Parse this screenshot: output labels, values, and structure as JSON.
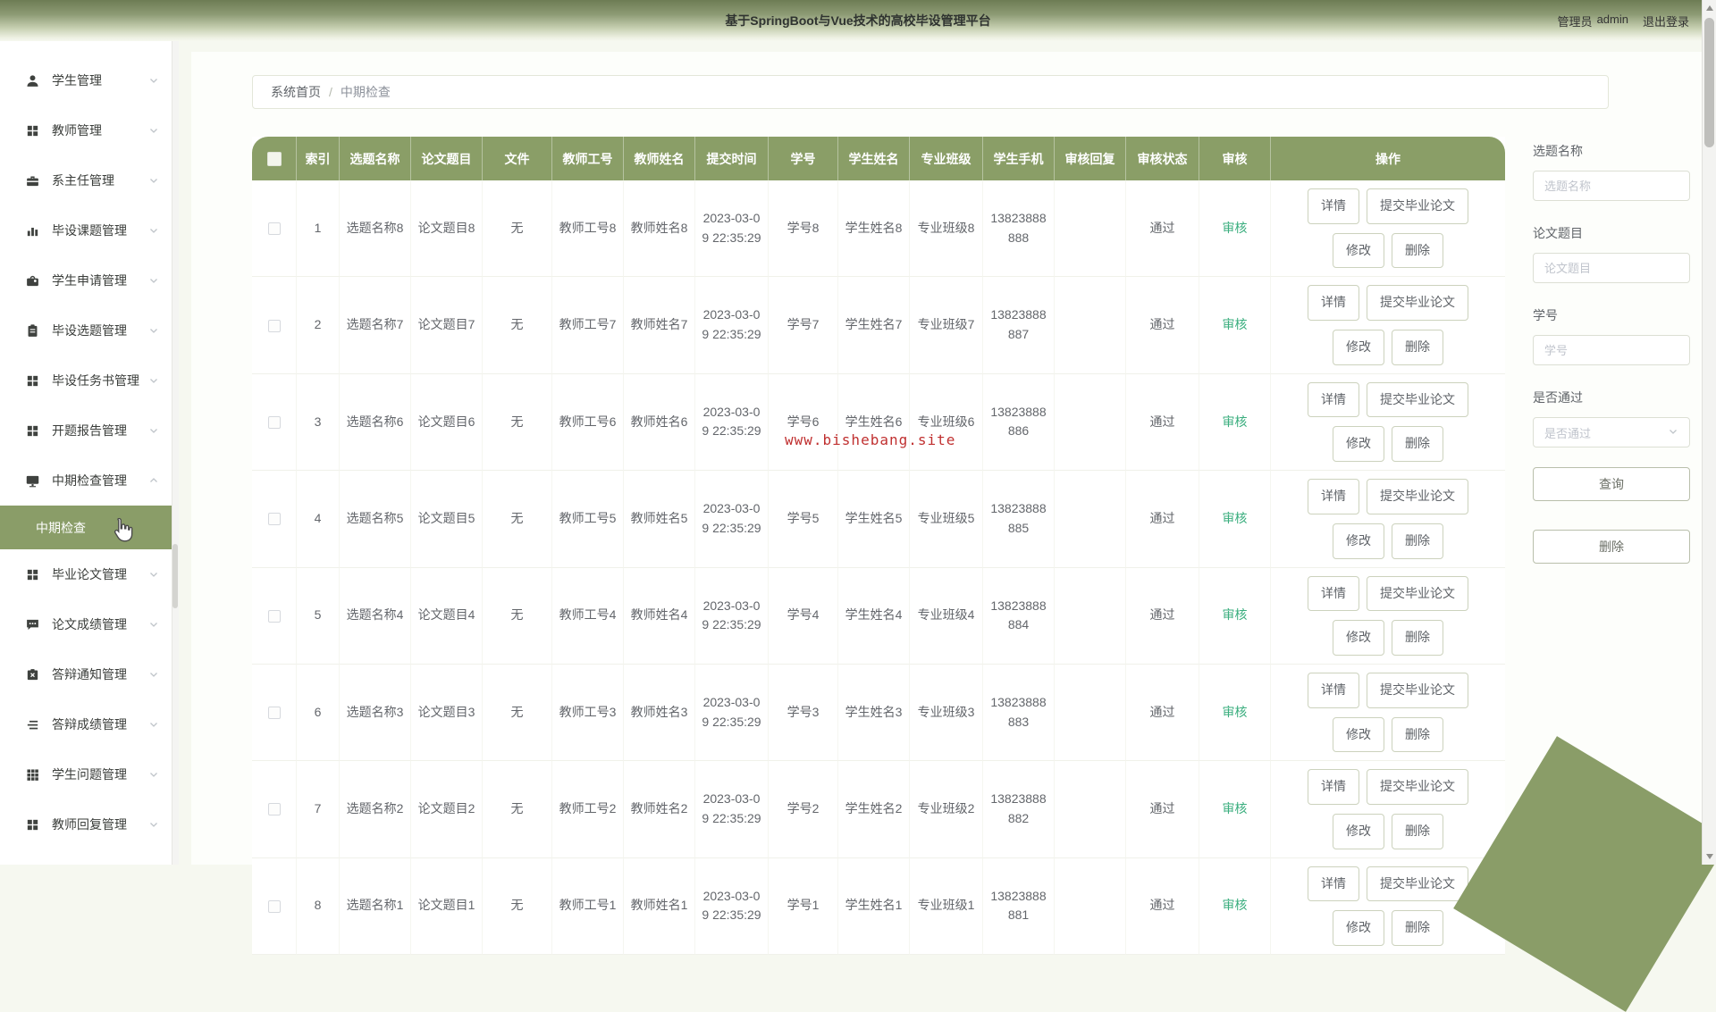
{
  "header": {
    "title": "基于SpringBoot与Vue技术的高校毕设管理平台",
    "user_role": "管理员",
    "username": "admin",
    "logout": "退出登录"
  },
  "breadcrumb": {
    "home": "系统首页",
    "separator": "/",
    "current": "中期检查"
  },
  "sidebar": {
    "items": [
      {
        "key": "students",
        "label": "学生管理",
        "icon": "user-icon"
      },
      {
        "key": "teachers",
        "label": "教师管理",
        "icon": "grid-icon"
      },
      {
        "key": "department-head",
        "label": "系主任管理",
        "icon": "briefcase-icon"
      },
      {
        "key": "project-topics",
        "label": "毕设课题管理",
        "icon": "bar-chart-icon"
      },
      {
        "key": "student-applications",
        "label": "学生申请管理",
        "icon": "bag-icon"
      },
      {
        "key": "topic-selection",
        "label": "毕设选题管理",
        "icon": "clipboard-icon"
      },
      {
        "key": "task-book",
        "label": "毕设任务书管理",
        "icon": "grid-icon"
      },
      {
        "key": "opening-report",
        "label": "开题报告管理",
        "icon": "grid-icon"
      },
      {
        "key": "midterm-check",
        "label": "中期检查管理",
        "icon": "monitor-icon",
        "expanded": true,
        "children": [
          {
            "key": "midterm-check-list",
            "label": "中期检查",
            "active": true
          }
        ]
      },
      {
        "key": "graduation-thesis",
        "label": "毕业论文管理",
        "icon": "grid-icon"
      },
      {
        "key": "thesis-grades",
        "label": "论文成绩管理",
        "icon": "comment-icon"
      },
      {
        "key": "defense-notice",
        "label": "答辩通知管理",
        "icon": "mail-x-icon"
      },
      {
        "key": "defense-grades",
        "label": "答辩成绩管理",
        "icon": "list-icon"
      },
      {
        "key": "student-questions",
        "label": "学生问题管理",
        "icon": "grid9-icon"
      },
      {
        "key": "teacher-replies",
        "label": "教师回复管理",
        "icon": "grid-icon"
      }
    ]
  },
  "table": {
    "columns": [
      "索引",
      "选题名称",
      "论文题目",
      "文件",
      "教师工号",
      "教师姓名",
      "提交时间",
      "学号",
      "学生姓名",
      "专业班级",
      "学生手机",
      "审核回复",
      "审核状态",
      "审核",
      "操作"
    ],
    "actions": {
      "detail": "详情",
      "submit": "提交毕业论文",
      "edit": "修改",
      "del": "删除"
    },
    "rows": [
      {
        "index": "1",
        "topic_name": "选题名称8",
        "thesis_title": "论文题目8",
        "file": "无",
        "teacher_id": "教师工号8",
        "teacher_name": "教师姓名8",
        "submit_time": "2023-03-09 22:35:29",
        "student_id": "学号8",
        "student_name": "学生姓名8",
        "class_name": "专业班级8",
        "phone": "13823888888",
        "review_reply": "",
        "review_status": "通过",
        "audit": "审核"
      },
      {
        "index": "2",
        "topic_name": "选题名称7",
        "thesis_title": "论文题目7",
        "file": "无",
        "teacher_id": "教师工号7",
        "teacher_name": "教师姓名7",
        "submit_time": "2023-03-09 22:35:29",
        "student_id": "学号7",
        "student_name": "学生姓名7",
        "class_name": "专业班级7",
        "phone": "13823888887",
        "review_reply": "",
        "review_status": "通过",
        "audit": "审核"
      },
      {
        "index": "3",
        "topic_name": "选题名称6",
        "thesis_title": "论文题目6",
        "file": "无",
        "teacher_id": "教师工号6",
        "teacher_name": "教师姓名6",
        "submit_time": "2023-03-09 22:35:29",
        "student_id": "学号6",
        "student_name": "学生姓名6",
        "class_name": "专业班级6",
        "phone": "13823888886",
        "review_reply": "",
        "review_status": "通过",
        "audit": "审核"
      },
      {
        "index": "4",
        "topic_name": "选题名称5",
        "thesis_title": "论文题目5",
        "file": "无",
        "teacher_id": "教师工号5",
        "teacher_name": "教师姓名5",
        "submit_time": "2023-03-09 22:35:29",
        "student_id": "学号5",
        "student_name": "学生姓名5",
        "class_name": "专业班级5",
        "phone": "13823888885",
        "review_reply": "",
        "review_status": "通过",
        "audit": "审核"
      },
      {
        "index": "5",
        "topic_name": "选题名称4",
        "thesis_title": "论文题目4",
        "file": "无",
        "teacher_id": "教师工号4",
        "teacher_name": "教师姓名4",
        "submit_time": "2023-03-09 22:35:29",
        "student_id": "学号4",
        "student_name": "学生姓名4",
        "class_name": "专业班级4",
        "phone": "13823888884",
        "review_reply": "",
        "review_status": "通过",
        "audit": "审核"
      },
      {
        "index": "6",
        "topic_name": "选题名称3",
        "thesis_title": "论文题目3",
        "file": "无",
        "teacher_id": "教师工号3",
        "teacher_name": "教师姓名3",
        "submit_time": "2023-03-09 22:35:29",
        "student_id": "学号3",
        "student_name": "学生姓名3",
        "class_name": "专业班级3",
        "phone": "13823888883",
        "review_reply": "",
        "review_status": "通过",
        "audit": "审核"
      },
      {
        "index": "7",
        "topic_name": "选题名称2",
        "thesis_title": "论文题目2",
        "file": "无",
        "teacher_id": "教师工号2",
        "teacher_name": "教师姓名2",
        "submit_time": "2023-03-09 22:35:29",
        "student_id": "学号2",
        "student_name": "学生姓名2",
        "class_name": "专业班级2",
        "phone": "13823888882",
        "review_reply": "",
        "review_status": "通过",
        "audit": "审核"
      },
      {
        "index": "8",
        "topic_name": "选题名称1",
        "thesis_title": "论文题目1",
        "file": "无",
        "teacher_id": "教师工号1",
        "teacher_name": "教师姓名1",
        "submit_time": "2023-03-09 22:35:29",
        "student_id": "学号1",
        "student_name": "学生姓名1",
        "class_name": "专业班级1",
        "phone": "13823888881",
        "review_reply": "",
        "review_status": "通过",
        "audit": "审核"
      }
    ]
  },
  "filter": {
    "fields": [
      {
        "key": "topic-name",
        "label": "选题名称",
        "placeholder": "选题名称",
        "type": "input"
      },
      {
        "key": "thesis-title",
        "label": "论文题目",
        "placeholder": "论文题目",
        "type": "input"
      },
      {
        "key": "student-id",
        "label": "学号",
        "placeholder": "学号",
        "type": "select0input"
      },
      {
        "key": "is-passed",
        "label": "是否通过",
        "placeholder": "是否通过",
        "type": "select"
      }
    ],
    "search": "查询",
    "delete": "删除"
  },
  "watermark": {
    "text": "www.bishebang.site"
  },
  "colors": {
    "accent": "#8a9d68",
    "table_header": "#8a9e67",
    "audit_link": "#3aae7e",
    "watermark_red": "#c03030"
  }
}
